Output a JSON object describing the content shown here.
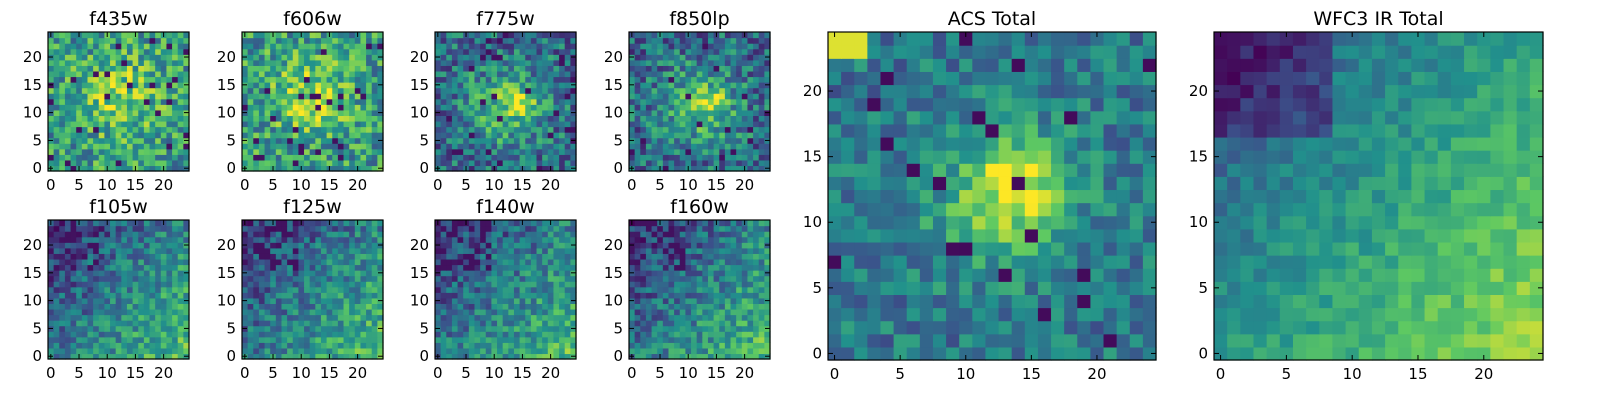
{
  "chart_data": {
    "type": "heatmap",
    "colormap": "viridis",
    "colormap_stops": [
      "#440154",
      "#3b528b",
      "#21918c",
      "#5ec962",
      "#fde725"
    ],
    "grid_size": 25,
    "panels": [
      {
        "title": "f435w",
        "group": "small",
        "pattern": "noise-center",
        "xticks": [
          "0",
          "5",
          "10",
          "15",
          "20"
        ],
        "yticks": [
          "0",
          "5",
          "10",
          "15",
          "20"
        ],
        "xlim": [
          0,
          25
        ],
        "ylim": [
          0,
          25
        ]
      },
      {
        "title": "f606w",
        "group": "small",
        "pattern": "noise-center",
        "xticks": [
          "0",
          "5",
          "10",
          "15",
          "20"
        ],
        "yticks": [
          "0",
          "5",
          "10",
          "15",
          "20"
        ],
        "xlim": [
          0,
          25
        ],
        "ylim": [
          0,
          25
        ]
      },
      {
        "title": "f775w",
        "group": "small",
        "pattern": "optical",
        "xticks": [
          "0",
          "5",
          "10",
          "15",
          "20"
        ],
        "yticks": [
          "0",
          "5",
          "10",
          "15",
          "20"
        ],
        "xlim": [
          0,
          25
        ],
        "ylim": [
          0,
          25
        ]
      },
      {
        "title": "f850lp",
        "group": "small",
        "pattern": "optical",
        "xticks": [
          "0",
          "5",
          "10",
          "15",
          "20"
        ],
        "yticks": [
          "0",
          "5",
          "10",
          "15",
          "20"
        ],
        "xlim": [
          0,
          25
        ],
        "ylim": [
          0,
          25
        ]
      },
      {
        "title": "f105w",
        "group": "small",
        "pattern": "ir",
        "xticks": [
          "0",
          "5",
          "10",
          "15",
          "20"
        ],
        "yticks": [
          "0",
          "5",
          "10",
          "15",
          "20"
        ],
        "xlim": [
          0,
          25
        ],
        "ylim": [
          0,
          25
        ]
      },
      {
        "title": "f125w",
        "group": "small",
        "pattern": "ir",
        "xticks": [
          "0",
          "5",
          "10",
          "15",
          "20"
        ],
        "yticks": [
          "0",
          "5",
          "10",
          "15",
          "20"
        ],
        "xlim": [
          0,
          25
        ],
        "ylim": [
          0,
          25
        ]
      },
      {
        "title": "f140w",
        "group": "small",
        "pattern": "ir",
        "xticks": [
          "0",
          "5",
          "10",
          "15",
          "20"
        ],
        "yticks": [
          "0",
          "5",
          "10",
          "15",
          "20"
        ],
        "xlim": [
          0,
          25
        ],
        "ylim": [
          0,
          25
        ]
      },
      {
        "title": "f160w",
        "group": "small",
        "pattern": "ir",
        "xticks": [
          "0",
          "5",
          "10",
          "15",
          "20"
        ],
        "yticks": [
          "0",
          "5",
          "10",
          "15",
          "20"
        ],
        "xlim": [
          0,
          25
        ],
        "ylim": [
          0,
          25
        ]
      },
      {
        "title": "ACS Total",
        "group": "large",
        "pattern": "acs",
        "xticks": [
          "0",
          "5",
          "10",
          "15",
          "20"
        ],
        "yticks": [
          "0",
          "5",
          "10",
          "15",
          "20"
        ],
        "xlim": [
          0,
          25
        ],
        "ylim": [
          0,
          25
        ]
      },
      {
        "title": "WFC3 IR Total",
        "group": "large",
        "pattern": "ir-total",
        "xticks": [
          "0",
          "5",
          "10",
          "15",
          "20"
        ],
        "yticks": [
          "0",
          "5",
          "10",
          "15",
          "20"
        ],
        "xlim": [
          0,
          25
        ],
        "ylim": [
          0,
          25
        ]
      }
    ]
  }
}
